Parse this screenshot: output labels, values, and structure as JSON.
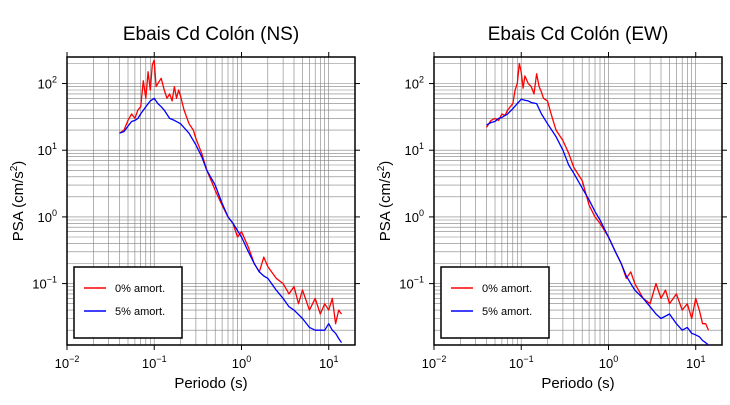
{
  "figure": {
    "background": "#ffffff",
    "frame_color": "#000000",
    "grid_color": "#808080"
  },
  "chart_data": [
    {
      "type": "line",
      "title": "Ebais Cd Colón (NS)",
      "xlabel": "Periodo (s)",
      "ylabel_main": "PSA (cm/s",
      "ylabel_sup": "2",
      "ylabel_close": ")",
      "xscale": "log",
      "yscale": "log",
      "xlim": [
        0.01,
        20
      ],
      "ylim": [
        0.012,
        250
      ],
      "grid": true,
      "legend": "lower-left",
      "xticks": [
        {
          "v": 0.01,
          "base": "10",
          "exp": "−2"
        },
        {
          "v": 0.1,
          "base": "10",
          "exp": "−1"
        },
        {
          "v": 1,
          "base": "10",
          "exp": "0"
        },
        {
          "v": 10,
          "base": "10",
          "exp": "1"
        }
      ],
      "yticks": [
        {
          "v": 0.1,
          "base": "10",
          "exp": "−1"
        },
        {
          "v": 1,
          "base": "10",
          "exp": "0"
        },
        {
          "v": 10,
          "base": "10",
          "exp": "1"
        },
        {
          "v": 100,
          "base": "10",
          "exp": "2"
        }
      ],
      "series": [
        {
          "name": "0% amort.",
          "color": "#ff0000",
          "x": [
            0.04,
            0.045,
            0.05,
            0.055,
            0.06,
            0.065,
            0.07,
            0.075,
            0.08,
            0.085,
            0.09,
            0.095,
            0.1,
            0.105,
            0.11,
            0.12,
            0.13,
            0.14,
            0.15,
            0.16,
            0.17,
            0.18,
            0.19,
            0.2,
            0.22,
            0.25,
            0.28,
            0.3,
            0.35,
            0.4,
            0.45,
            0.5,
            0.6,
            0.7,
            0.8,
            0.9,
            1.0,
            1.2,
            1.4,
            1.6,
            1.8,
            2.0,
            2.5,
            3.0,
            3.5,
            4.0,
            4.5,
            5.0,
            6.0,
            7.0,
            8.0,
            9.0,
            10,
            11,
            12,
            13,
            14
          ],
          "y": [
            18,
            20,
            28,
            35,
            30,
            40,
            45,
            110,
            60,
            150,
            80,
            190,
            225,
            90,
            100,
            120,
            80,
            60,
            70,
            55,
            90,
            60,
            80,
            65,
            40,
            25,
            20,
            15,
            9,
            5,
            3.5,
            2.5,
            1.5,
            1.0,
            0.8,
            0.5,
            0.6,
            0.35,
            0.2,
            0.15,
            0.25,
            0.18,
            0.12,
            0.1,
            0.07,
            0.09,
            0.05,
            0.08,
            0.04,
            0.06,
            0.035,
            0.05,
            0.04,
            0.06,
            0.025,
            0.04,
            0.035
          ]
        },
        {
          "name": "5% amort.",
          "color": "#0000ff",
          "x": [
            0.04,
            0.045,
            0.05,
            0.055,
            0.06,
            0.065,
            0.07,
            0.08,
            0.09,
            0.1,
            0.11,
            0.12,
            0.13,
            0.15,
            0.17,
            0.2,
            0.25,
            0.3,
            0.35,
            0.4,
            0.5,
            0.6,
            0.7,
            0.8,
            1.0,
            1.2,
            1.4,
            1.6,
            1.8,
            2.0,
            2.5,
            3.0,
            3.5,
            4.0,
            5.0,
            6.0,
            7.0,
            8.0,
            9.0,
            10,
            11,
            12,
            13,
            14
          ],
          "y": [
            18,
            19,
            23,
            27,
            28,
            30,
            35,
            45,
            55,
            60,
            50,
            45,
            40,
            30,
            28,
            25,
            18,
            12,
            8,
            5,
            3,
            1.6,
            1.0,
            0.8,
            0.5,
            0.3,
            0.2,
            0.15,
            0.13,
            0.12,
            0.08,
            0.06,
            0.045,
            0.04,
            0.03,
            0.022,
            0.02,
            0.02,
            0.02,
            0.025,
            0.02,
            0.018,
            0.015,
            0.013
          ]
        }
      ]
    },
    {
      "type": "line",
      "title": "Ebais Cd Colón (EW)",
      "xlabel": "Periodo (s)",
      "ylabel_main": "PSA (cm/s",
      "ylabel_sup": "2",
      "ylabel_close": ")",
      "xscale": "log",
      "yscale": "log",
      "xlim": [
        0.01,
        20
      ],
      "ylim": [
        0.012,
        250
      ],
      "grid": true,
      "legend": "lower-left",
      "xticks": [
        {
          "v": 0.01,
          "base": "10",
          "exp": "−2"
        },
        {
          "v": 0.1,
          "base": "10",
          "exp": "−1"
        },
        {
          "v": 1,
          "base": "10",
          "exp": "0"
        },
        {
          "v": 10,
          "base": "10",
          "exp": "1"
        }
      ],
      "yticks": [
        {
          "v": 0.1,
          "base": "10",
          "exp": "−1"
        },
        {
          "v": 1,
          "base": "10",
          "exp": "0"
        },
        {
          "v": 10,
          "base": "10",
          "exp": "1"
        },
        {
          "v": 100,
          "base": "10",
          "exp": "2"
        }
      ],
      "series": [
        {
          "name": "0% amort.",
          "color": "#ff0000",
          "x": [
            0.04,
            0.045,
            0.05,
            0.055,
            0.06,
            0.065,
            0.07,
            0.075,
            0.08,
            0.085,
            0.09,
            0.095,
            0.1,
            0.105,
            0.11,
            0.12,
            0.13,
            0.14,
            0.15,
            0.16,
            0.17,
            0.18,
            0.2,
            0.22,
            0.25,
            0.3,
            0.35,
            0.4,
            0.5,
            0.6,
            0.7,
            0.8,
            1.0,
            1.2,
            1.4,
            1.6,
            1.8,
            2.0,
            2.5,
            3.0,
            3.5,
            4.0,
            4.5,
            5.0,
            6.0,
            7.0,
            8.0,
            9.0,
            10,
            11,
            12,
            13,
            14
          ],
          "y": [
            22,
            28,
            30,
            28,
            35,
            33,
            40,
            45,
            50,
            80,
            100,
            200,
            150,
            85,
            130,
            100,
            90,
            70,
            140,
            90,
            75,
            60,
            55,
            35,
            20,
            14,
            9,
            5.5,
            3.5,
            1.5,
            1.0,
            0.8,
            0.5,
            0.3,
            0.2,
            0.12,
            0.15,
            0.1,
            0.06,
            0.05,
            0.1,
            0.06,
            0.08,
            0.05,
            0.07,
            0.04,
            0.05,
            0.03,
            0.06,
            0.04,
            0.025,
            0.025,
            0.02
          ]
        },
        {
          "name": "5% amort.",
          "color": "#0000ff",
          "x": [
            0.04,
            0.045,
            0.05,
            0.055,
            0.06,
            0.065,
            0.07,
            0.08,
            0.09,
            0.1,
            0.11,
            0.12,
            0.13,
            0.15,
            0.17,
            0.2,
            0.25,
            0.3,
            0.35,
            0.4,
            0.5,
            0.6,
            0.7,
            0.8,
            1.0,
            1.2,
            1.4,
            1.6,
            1.8,
            2.0,
            2.5,
            3.0,
            3.5,
            4.0,
            5.0,
            6.0,
            7.0,
            8.0,
            9.0,
            10,
            11,
            12,
            13,
            14
          ],
          "y": [
            24,
            26,
            27,
            30,
            31,
            33,
            35,
            42,
            50,
            58,
            56,
            55,
            52,
            50,
            35,
            25,
            16,
            10,
            6,
            4.5,
            2.7,
            1.8,
            1.2,
            0.9,
            0.5,
            0.3,
            0.2,
            0.13,
            0.1,
            0.08,
            0.06,
            0.045,
            0.035,
            0.03,
            0.035,
            0.025,
            0.02,
            0.022,
            0.018,
            0.017,
            0.016,
            0.014,
            0.013,
            0.012
          ]
        }
      ]
    }
  ]
}
